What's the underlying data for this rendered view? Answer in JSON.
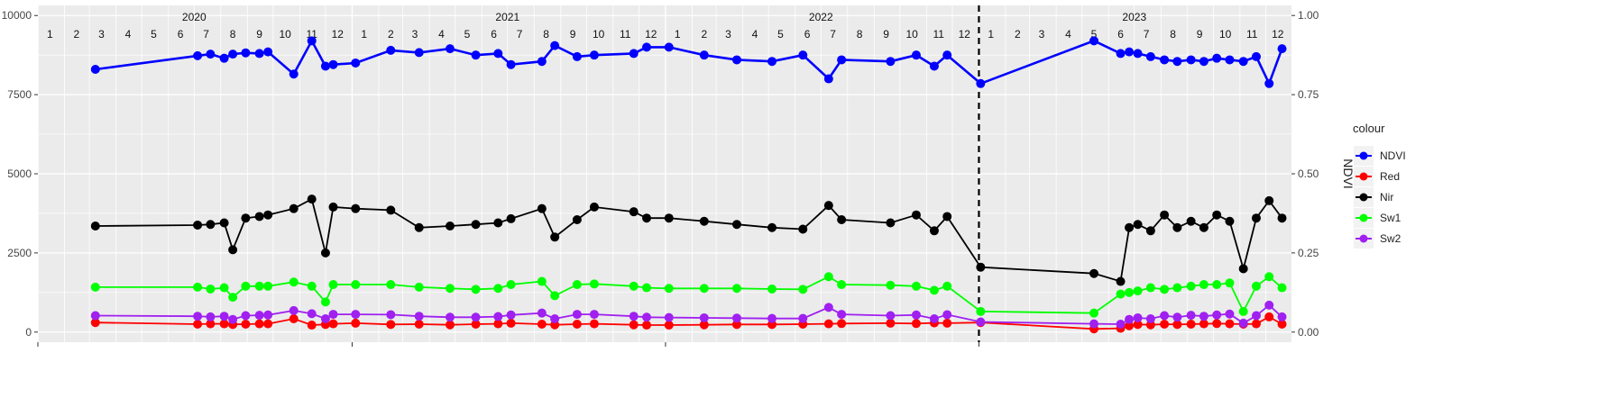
{
  "chart_data": {
    "type": "line",
    "title": "",
    "xlabel": "",
    "ylabel": "",
    "y2label": "NDVI",
    "ylim": [
      0,
      10000
    ],
    "y2lim": [
      0,
      1
    ],
    "yticks": [
      "0",
      "2500",
      "5000",
      "7500",
      "10000"
    ],
    "y2ticks": [
      "0.00",
      "0.25",
      "0.50",
      "0.75",
      "1.00"
    ],
    "xlim": [
      "2020-01-01",
      "2023-12-31"
    ],
    "grid": true,
    "vline": {
      "date": "2023-01-01",
      "style": "dashed",
      "color": "#000000"
    },
    "year_labels": [
      {
        "year": "2020",
        "date": "2020-07-01"
      },
      {
        "year": "2021",
        "date": "2021-07-01"
      },
      {
        "year": "2022",
        "date": "2022-07-01"
      },
      {
        "year": "2023",
        "date": "2023-07-01"
      }
    ],
    "month_labels": [
      "1",
      "2",
      "3",
      "4",
      "5",
      "6",
      "7",
      "8",
      "9",
      "10",
      "11",
      "12"
    ],
    "legend": {
      "title": "colour",
      "position": "right",
      "entries": [
        {
          "name": "NDVI",
          "color": "#0000ff"
        },
        {
          "name": "Red",
          "color": "#ff0000"
        },
        {
          "name": "Nir",
          "color": "#000000"
        },
        {
          "name": "Sw1",
          "color": "#00ff00"
        },
        {
          "name": "Sw2",
          "color": "#a020f0"
        }
      ]
    },
    "x": [
      "2020-03-08",
      "2020-07-05",
      "2020-07-20",
      "2020-08-05",
      "2020-08-15",
      "2020-08-30",
      "2020-09-15",
      "2020-09-25",
      "2020-10-25",
      "2020-11-15",
      "2020-12-01",
      "2020-12-10",
      "2021-01-05",
      "2021-02-15",
      "2021-03-20",
      "2021-04-25",
      "2021-05-25",
      "2021-06-20",
      "2021-07-05",
      "2021-08-10",
      "2021-08-25",
      "2021-09-20",
      "2021-10-10",
      "2021-11-25",
      "2021-12-10",
      "2022-01-05",
      "2022-02-15",
      "2022-03-25",
      "2022-05-05",
      "2022-06-10",
      "2022-07-10",
      "2022-07-25",
      "2022-09-20",
      "2022-10-20",
      "2022-11-10",
      "2022-11-25",
      "2023-01-03",
      "2023-05-15",
      "2023-06-15",
      "2023-06-25",
      "2023-07-05",
      "2023-07-20",
      "2023-08-05",
      "2023-08-20",
      "2023-09-05",
      "2023-09-20",
      "2023-10-05",
      "2023-10-20",
      "2023-11-05",
      "2023-11-20",
      "2023-12-05",
      "2023-12-20"
    ],
    "series": [
      {
        "name": "NDVI",
        "axis": "right",
        "color": "#0000ff",
        "values": [
          0.83,
          0.873,
          0.878,
          0.865,
          0.878,
          0.882,
          0.88,
          0.885,
          0.815,
          0.92,
          0.84,
          0.845,
          0.85,
          0.89,
          0.883,
          0.895,
          0.875,
          0.88,
          0.845,
          0.855,
          0.905,
          0.87,
          0.875,
          0.88,
          0.9,
          0.9,
          0.875,
          0.86,
          0.855,
          0.875,
          0.8,
          0.86,
          0.855,
          0.875,
          0.84,
          0.875,
          0.785,
          0.92,
          0.88,
          0.885,
          0.88,
          0.87,
          0.86,
          0.855,
          0.86,
          0.855,
          0.865,
          0.86,
          0.855,
          0.87,
          0.785,
          0.895
        ]
      },
      {
        "name": "Red",
        "axis": "left",
        "color": "#ff0000",
        "values": [
          300,
          250,
          260,
          260,
          240,
          250,
          260,
          260,
          420,
          220,
          240,
          260,
          280,
          240,
          250,
          230,
          250,
          260,
          280,
          250,
          230,
          250,
          260,
          230,
          220,
          220,
          230,
          240,
          240,
          250,
          260,
          270,
          280,
          270,
          290,
          280,
          300,
          100,
          120,
          200,
          240,
          230,
          250,
          240,
          250,
          260,
          270,
          260,
          250,
          260,
          480,
          250
        ]
      },
      {
        "name": "Nir",
        "axis": "left",
        "color": "#000000",
        "values": [
          3350,
          3380,
          3400,
          3450,
          2600,
          3600,
          3650,
          3700,
          3900,
          4200,
          2500,
          3950,
          3900,
          3850,
          3300,
          3350,
          3400,
          3450,
          3580,
          3900,
          3000,
          3550,
          3950,
          3800,
          3600,
          3600,
          3500,
          3400,
          3300,
          3250,
          4000,
          3550,
          3450,
          3700,
          3200,
          3650,
          2050,
          1850,
          1600,
          3300,
          3400,
          3200,
          3700,
          3300,
          3500,
          3300,
          3700,
          3500,
          2000,
          3600,
          4150,
          3600
        ]
      },
      {
        "name": "Sw1",
        "axis": "left",
        "color": "#00ff00",
        "values": [
          1420,
          1420,
          1360,
          1400,
          1100,
          1450,
          1450,
          1450,
          1580,
          1450,
          950,
          1500,
          1500,
          1500,
          1420,
          1380,
          1350,
          1380,
          1500,
          1600,
          1150,
          1500,
          1520,
          1450,
          1400,
          1380,
          1380,
          1380,
          1360,
          1350,
          1750,
          1500,
          1480,
          1450,
          1320,
          1450,
          650,
          600,
          1200,
          1250,
          1300,
          1400,
          1350,
          1400,
          1450,
          1500,
          1500,
          1550,
          650,
          1450,
          1750,
          1400
        ]
      },
      {
        "name": "Sw2",
        "axis": "left",
        "color": "#a020f0",
        "values": [
          520,
          500,
          480,
          500,
          400,
          520,
          530,
          540,
          680,
          580,
          420,
          560,
          560,
          550,
          500,
          470,
          470,
          490,
          540,
          600,
          420,
          560,
          560,
          500,
          470,
          460,
          450,
          440,
          430,
          430,
          780,
          560,
          520,
          540,
          420,
          550,
          320,
          260,
          250,
          400,
          450,
          420,
          520,
          470,
          530,
          500,
          540,
          570,
          280,
          520,
          850,
          480
        ]
      }
    ]
  }
}
